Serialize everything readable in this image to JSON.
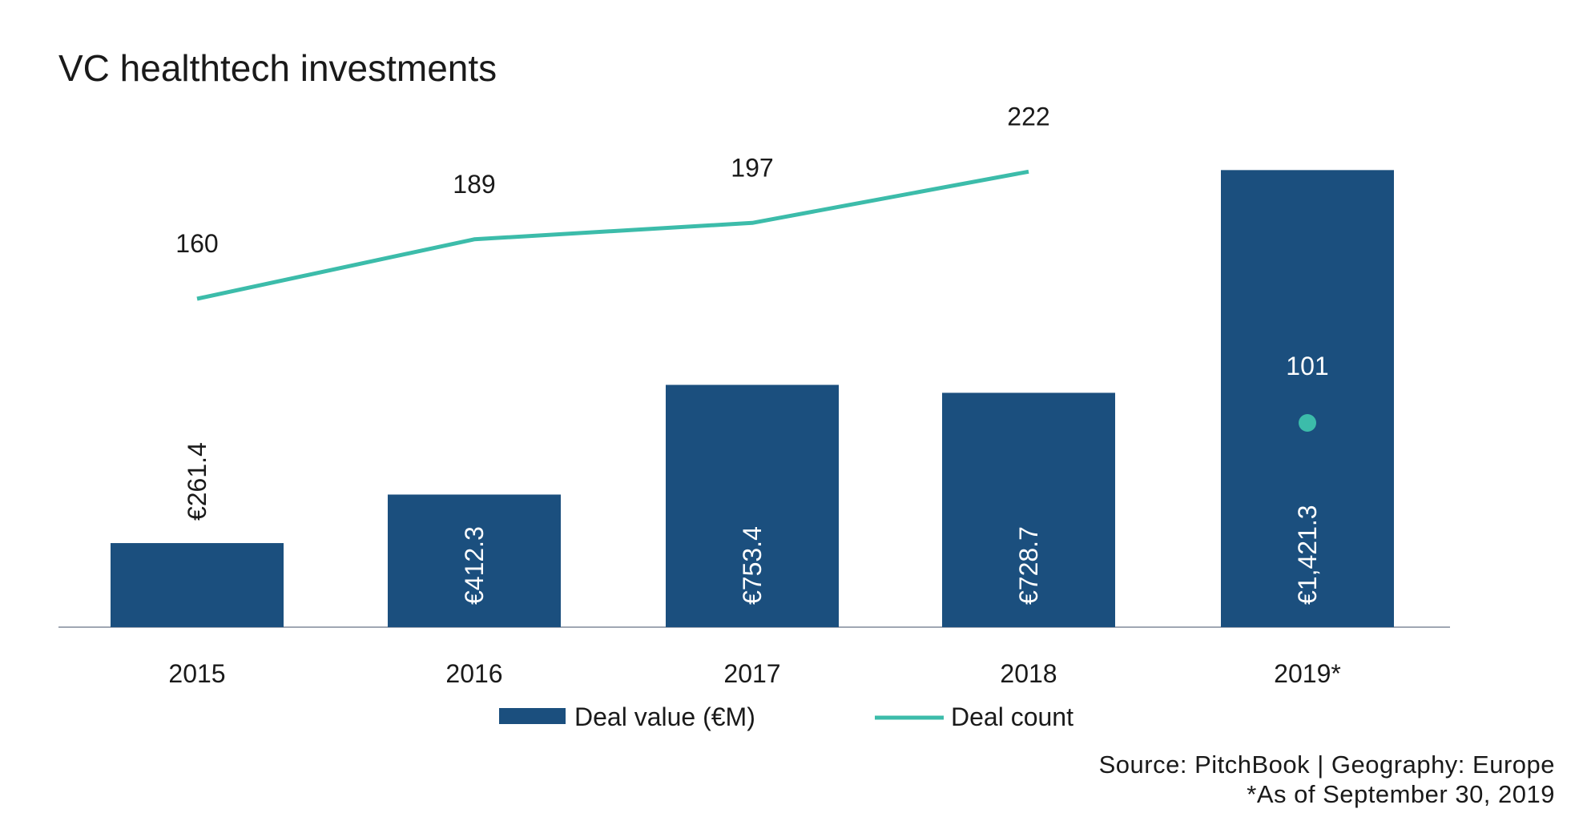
{
  "title": "VC healthtech investments",
  "colors": {
    "bar": "#1b4f7e",
    "line": "#3cbcaa",
    "axis": "#a0a7b3",
    "text": "#1a1a1a",
    "bar_label": "#ffffff"
  },
  "chart_data": {
    "type": "bar",
    "title": "VC healthtech investments",
    "categories": [
      "2015",
      "2016",
      "2017",
      "2018",
      "2019*"
    ],
    "series": [
      {
        "name": "Deal value (€M)",
        "type": "bar",
        "values": [
          261.4,
          412.3,
          753.4,
          728.7,
          1421.3
        ],
        "labels": [
          "€261.4",
          "€412.3",
          "€753.4",
          "€728.7",
          "€1,421.3"
        ]
      },
      {
        "name": "Deal count",
        "type": "line",
        "values": [
          160,
          189,
          197,
          222,
          101
        ],
        "labels": [
          "160",
          "189",
          "197",
          "222",
          "101"
        ]
      }
    ],
    "legend_position": "bottom",
    "grid": false
  },
  "footer": {
    "source": "Source: PitchBook | Geography: Europe",
    "note": "*As of September 30, 2019"
  }
}
